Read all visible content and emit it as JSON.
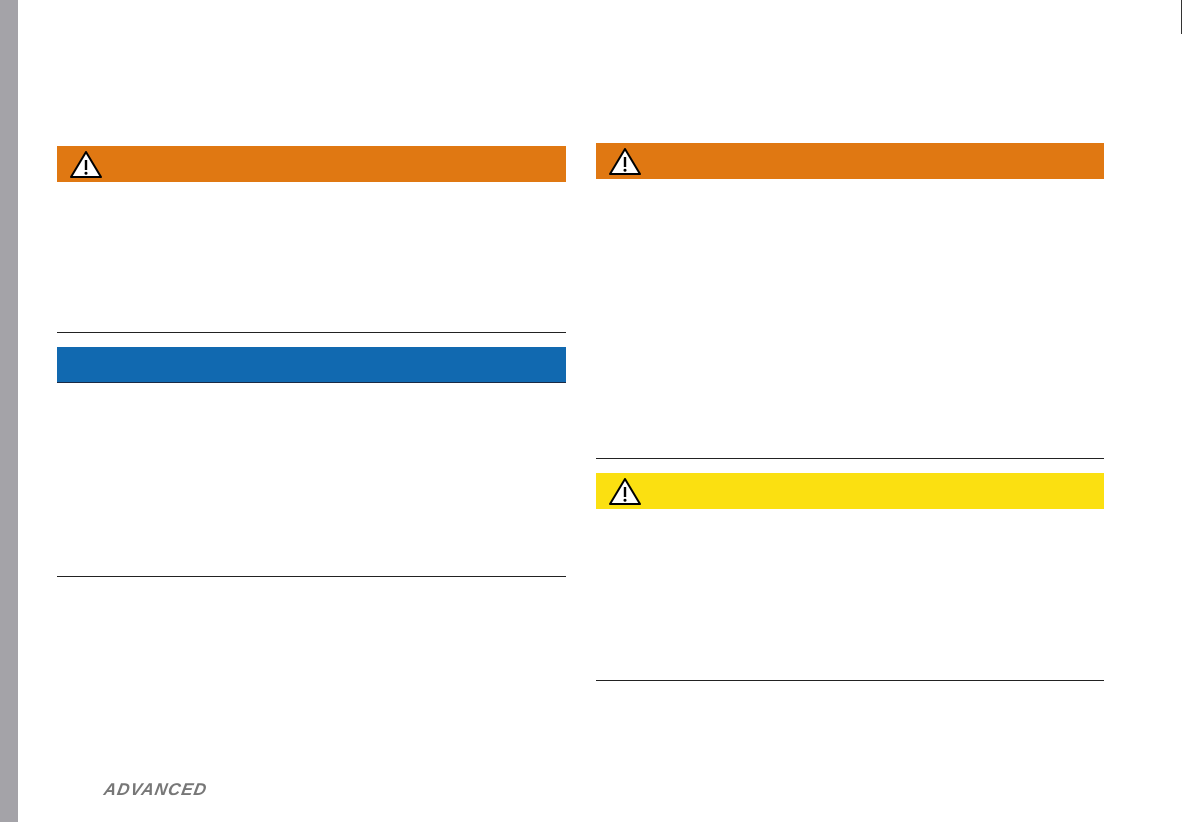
{
  "footer": {
    "logo": "ADVANCED"
  }
}
